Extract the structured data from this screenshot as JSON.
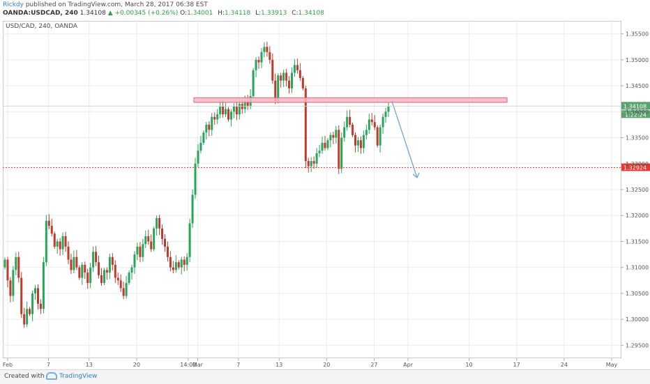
{
  "header": {
    "author": "Rickdy",
    "published_text": " published on TradingView.com, March 28, 2017 06:38 EST",
    "symbol": "OANDA:USDCAD, 240",
    "last": "1.34108",
    "change": "▲ +0.00345 (+0.26%)",
    "o_label": "O:",
    "o_value": "1.34001",
    "h_label": "H:",
    "h_value": "1.34118",
    "l_label": "L:",
    "l_value": "1.33913",
    "c_label": "C:",
    "c_value": "1.34108"
  },
  "chart_label": "USD/CAD, 240, OANDA",
  "footer": {
    "created": "Created with",
    "brand": "TradingView"
  },
  "colors": {
    "up": "#26a65b",
    "down": "#c0392b",
    "grid": "#ececec",
    "zone_fill": "#f4b9c3",
    "zone_stroke": "#d9607a",
    "arrow": "#6fa3dc",
    "support": "#e74c3c",
    "last_bg": "#5ba271"
  },
  "chart_data": {
    "type": "candlestick",
    "x_ticks": [
      "Feb",
      "7",
      "13",
      "20",
      "14:00",
      "Mar",
      "7",
      "13",
      "20",
      "27",
      "Apr",
      "10",
      "17",
      "24",
      "May"
    ],
    "y_ticks": [
      "1.35500",
      "1.35000",
      "1.34500",
      "1.34000",
      "1.33500",
      "1.33000",
      "1.32500",
      "1.32000",
      "1.31500",
      "1.31000",
      "1.30500",
      "1.30000",
      "1.29500"
    ],
    "ylim": [
      1.2925,
      1.3575
    ],
    "price_labels": {
      "last": "1.34108",
      "countdown": "1:22:24",
      "support": "1.32924"
    },
    "resistance_zone": {
      "low": 1.3418,
      "high": 1.3427,
      "from_x": "Mar 1",
      "to_x": "Apr 14"
    },
    "support_level": 1.32924,
    "projection": {
      "from": {
        "x": "Mar 28",
        "y": 1.342
      },
      "to": {
        "x": "Mar 30",
        "y": 1.3273
      }
    },
    "closes": [
      1.3115,
      1.3075,
      1.3045,
      1.3095,
      1.312,
      1.308,
      1.301,
      1.299,
      1.302,
      1.301,
      1.305,
      1.306,
      1.303,
      1.302,
      1.311,
      1.319,
      1.318,
      1.3165,
      1.314,
      1.315,
      1.3135,
      1.316,
      1.314,
      1.3115,
      1.3095,
      1.312,
      1.31,
      1.308,
      1.3105,
      1.309,
      1.307,
      1.31,
      1.313,
      1.311,
      1.3085,
      1.307,
      1.3095,
      1.309,
      1.312,
      1.3105,
      1.308,
      1.3075,
      1.306,
      1.3045,
      1.307,
      1.309,
      1.31,
      1.3125,
      1.314,
      1.312,
      1.3145,
      1.316,
      1.315,
      1.3135,
      1.3175,
      1.3195,
      1.3175,
      1.3155,
      1.314,
      1.312,
      1.31,
      1.3095,
      1.311,
      1.31,
      1.3115,
      1.3105,
      1.312,
      1.3185,
      1.324,
      1.33,
      1.3325,
      1.334,
      1.336,
      1.3375,
      1.3365,
      1.339,
      1.3385,
      1.3395,
      1.341,
      1.3395,
      1.3405,
      1.3385,
      1.34,
      1.341,
      1.3395,
      1.3415,
      1.3405,
      1.342,
      1.341,
      1.343,
      1.348,
      1.35,
      1.3495,
      1.3515,
      1.3525,
      1.3515,
      1.35,
      1.346,
      1.342,
      1.347,
      1.346,
      1.3475,
      1.346,
      1.3445,
      1.3475,
      1.349,
      1.348,
      1.3465,
      1.3445,
      1.3305,
      1.3295,
      1.3305,
      1.33,
      1.332,
      1.3325,
      1.334,
      1.333,
      1.3345,
      1.3355,
      1.335,
      1.3365,
      1.329,
      1.335,
      1.337,
      1.339,
      1.3375,
      1.3355,
      1.3335,
      1.3345,
      1.333,
      1.3355,
      1.3365,
      1.3385,
      1.338,
      1.337,
      1.3335,
      1.337,
      1.339,
      1.34,
      1.341
    ]
  }
}
